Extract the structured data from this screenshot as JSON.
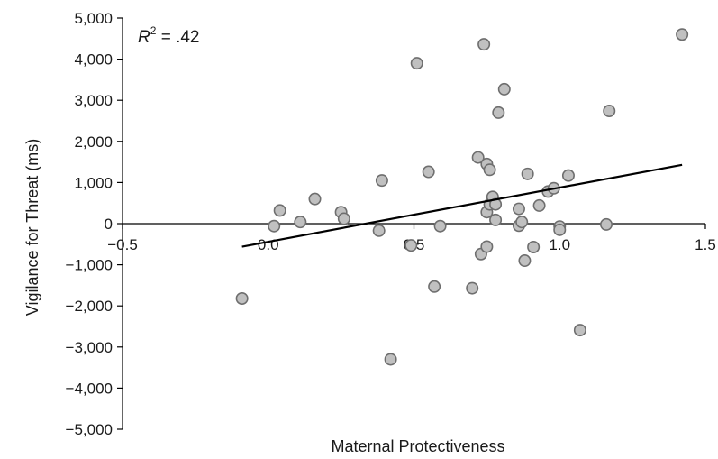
{
  "chart_data": {
    "type": "scatter",
    "xlabel": "Maternal Protectiveness",
    "ylabel": "Vigilance for Threat (ms)",
    "xlim": [
      -0.5,
      1.5
    ],
    "ylim": [
      -5000,
      5000
    ],
    "x_ticks": [
      "−0.5",
      "0.0",
      "0.5",
      "1.0",
      "1.5"
    ],
    "x_tick_values": [
      -0.5,
      0.0,
      0.5,
      1.0,
      1.5
    ],
    "y_ticks": [
      "5,000",
      "4,000",
      "3,000",
      "2,000",
      "1,000",
      "0",
      "−1,000",
      "−2,000",
      "−3,000",
      "−4,000",
      "−5,000"
    ],
    "y_tick_values": [
      5000,
      4000,
      3000,
      2000,
      1000,
      0,
      -1000,
      -2000,
      -3000,
      -4000,
      -5000
    ],
    "annotation": {
      "text_italic": "R",
      "superscript": "2",
      "rest": " = .42"
    },
    "grid": false,
    "legend": "none",
    "points": [
      {
        "x": -0.09,
        "y": -1820
      },
      {
        "x": 0.02,
        "y": -60
      },
      {
        "x": 0.04,
        "y": 320
      },
      {
        "x": 0.11,
        "y": 40
      },
      {
        "x": 0.16,
        "y": 600
      },
      {
        "x": 0.25,
        "y": 280
      },
      {
        "x": 0.26,
        "y": 120
      },
      {
        "x": 0.38,
        "y": -170
      },
      {
        "x": 0.39,
        "y": 1050
      },
      {
        "x": 0.42,
        "y": -3300
      },
      {
        "x": 0.49,
        "y": -530
      },
      {
        "x": 0.51,
        "y": 3900
      },
      {
        "x": 0.55,
        "y": 1260
      },
      {
        "x": 0.57,
        "y": -1530
      },
      {
        "x": 0.59,
        "y": -60
      },
      {
        "x": 0.7,
        "y": -1570
      },
      {
        "x": 0.72,
        "y": 1610
      },
      {
        "x": 0.73,
        "y": -740
      },
      {
        "x": 0.74,
        "y": 4360
      },
      {
        "x": 0.75,
        "y": 1450
      },
      {
        "x": 0.75,
        "y": 280
      },
      {
        "x": 0.75,
        "y": -560
      },
      {
        "x": 0.76,
        "y": 1310
      },
      {
        "x": 0.76,
        "y": 470
      },
      {
        "x": 0.77,
        "y": 650
      },
      {
        "x": 0.78,
        "y": 470
      },
      {
        "x": 0.78,
        "y": 90
      },
      {
        "x": 0.79,
        "y": 2700
      },
      {
        "x": 0.81,
        "y": 3270
      },
      {
        "x": 0.86,
        "y": 360
      },
      {
        "x": 0.86,
        "y": -50
      },
      {
        "x": 0.87,
        "y": 40
      },
      {
        "x": 0.88,
        "y": -900
      },
      {
        "x": 0.89,
        "y": 1210
      },
      {
        "x": 0.91,
        "y": -570
      },
      {
        "x": 0.93,
        "y": 440
      },
      {
        "x": 0.96,
        "y": 780
      },
      {
        "x": 0.98,
        "y": 860
      },
      {
        "x": 1.0,
        "y": -70
      },
      {
        "x": 1.0,
        "y": -150
      },
      {
        "x": 1.03,
        "y": 1170
      },
      {
        "x": 1.07,
        "y": -2590
      },
      {
        "x": 1.16,
        "y": -20
      },
      {
        "x": 1.17,
        "y": 2740
      },
      {
        "x": 1.42,
        "y": 4600
      }
    ],
    "trendline": {
      "x": [
        -0.09,
        1.42
      ],
      "y": [
        -560,
        1430
      ]
    },
    "marker_fill": "#c0c0c0",
    "marker_stroke": "#6e6e6e",
    "line_color": "#000000"
  }
}
